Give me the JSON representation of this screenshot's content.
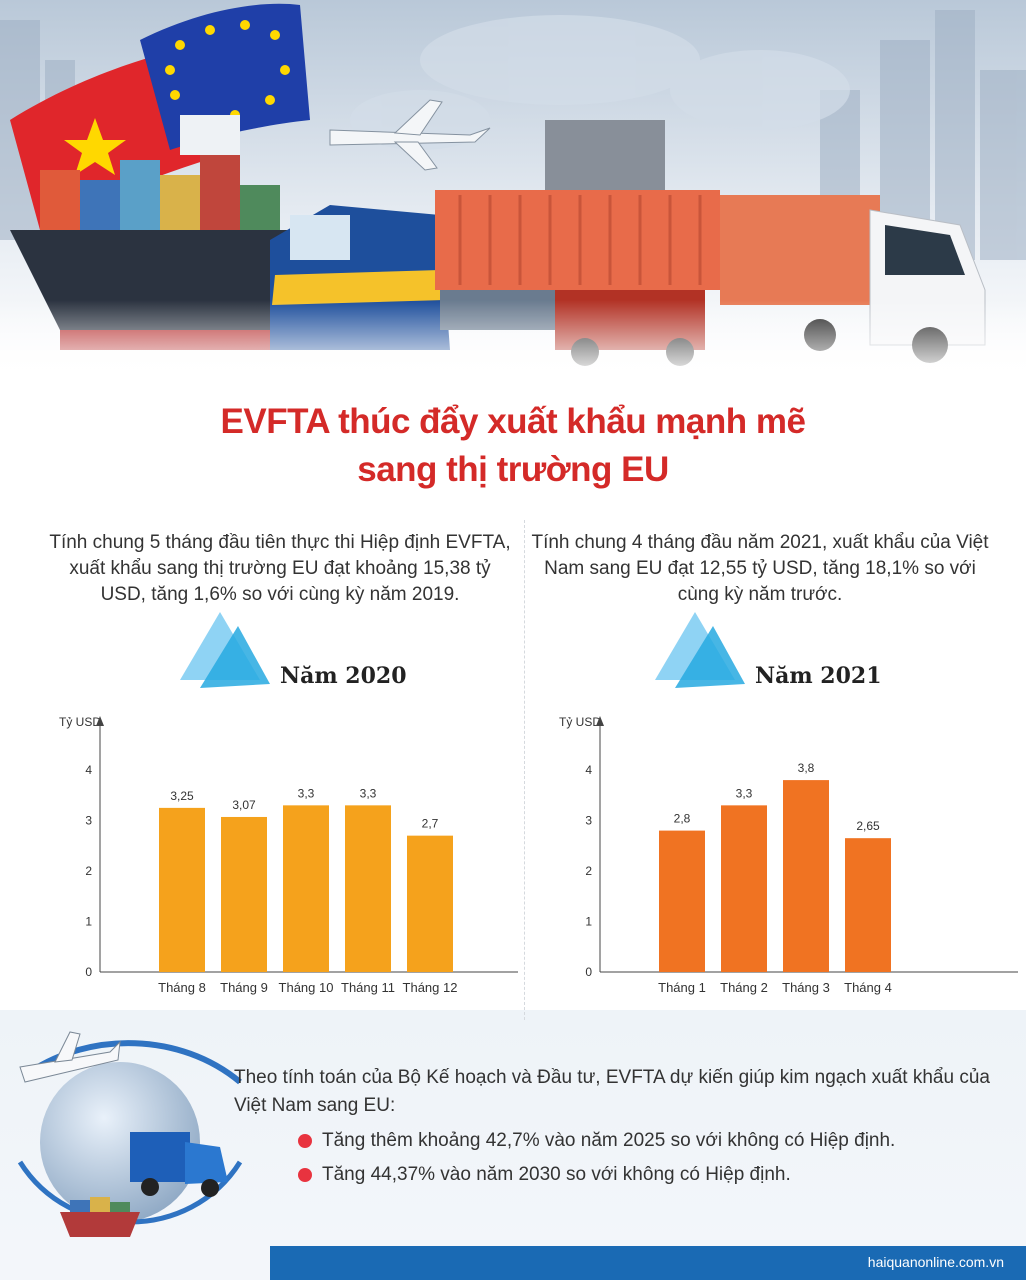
{
  "header": {
    "title_line1": "EVFTA thúc đẩy xuất khẩu mạnh mẽ",
    "title_line2": "sang thị trường EU"
  },
  "left": {
    "intro": "Tính chung 5 tháng đầu tiên thực thi Hiệp định EVFTA, xuất khẩu sang thị trường EU đạt khoảng 15,38 tỷ USD, tăng 1,6% so với cùng kỳ năm 2019.",
    "year_label": "Năm 2020"
  },
  "right": {
    "intro": "Tính chung 4 tháng đầu năm 2021, xuất khẩu của Việt Nam sang EU đạt 12,55 tỷ USD, tăng 18,1% so với cùng kỳ năm trước.",
    "year_label": "Năm 2021"
  },
  "chart_data": [
    {
      "type": "bar",
      "title": "",
      "ylabel": "Tỷ USD",
      "xlabel": "",
      "ylim": [
        0,
        4
      ],
      "yticks": [
        "0",
        "1",
        "2",
        "3",
        "4"
      ],
      "categories": [
        "Tháng 8",
        "Tháng 9",
        "Tháng 10",
        "Tháng 11",
        "Tháng 12"
      ],
      "values": [
        3.25,
        3.07,
        3.3,
        3.3,
        2.7
      ],
      "value_labels": [
        "3,25",
        "3,07",
        "3,3",
        "3,3",
        "2,7"
      ],
      "color": "#f5a21c",
      "grid": false
    },
    {
      "type": "bar",
      "title": "",
      "ylabel": "Tỷ USD",
      "xlabel": "",
      "ylim": [
        0,
        4
      ],
      "yticks": [
        "0",
        "1",
        "2",
        "3",
        "4"
      ],
      "categories": [
        "Tháng 1",
        "Tháng 2",
        "Tháng 3",
        "Tháng 4"
      ],
      "values": [
        2.8,
        3.3,
        3.8,
        2.65
      ],
      "value_labels": [
        "2,8",
        "3,3",
        "3,8",
        "2,65"
      ],
      "color": "#f07322",
      "grid": false
    }
  ],
  "bottom": {
    "intro": "Theo tính toán của Bộ Kế hoạch và Đầu tư, EVFTA dự kiến giúp kim ngạch xuất khẩu của Việt Nam sang EU:",
    "bullets": [
      "Tăng thêm khoảng 42,7% vào năm 2025 so với không có Hiệp định.",
      "Tăng 44,37% vào năm 2030 so với không có Hiệp định."
    ]
  },
  "footer": {
    "source": "haiquanonline.com.vn"
  },
  "colors": {
    "title_red": "#d42a28",
    "footer_blue": "#1a6ab4",
    "bullet_red": "#e8333f",
    "triangle_light": "#8fd3f4",
    "triangle_blue": "#27a9e1"
  }
}
